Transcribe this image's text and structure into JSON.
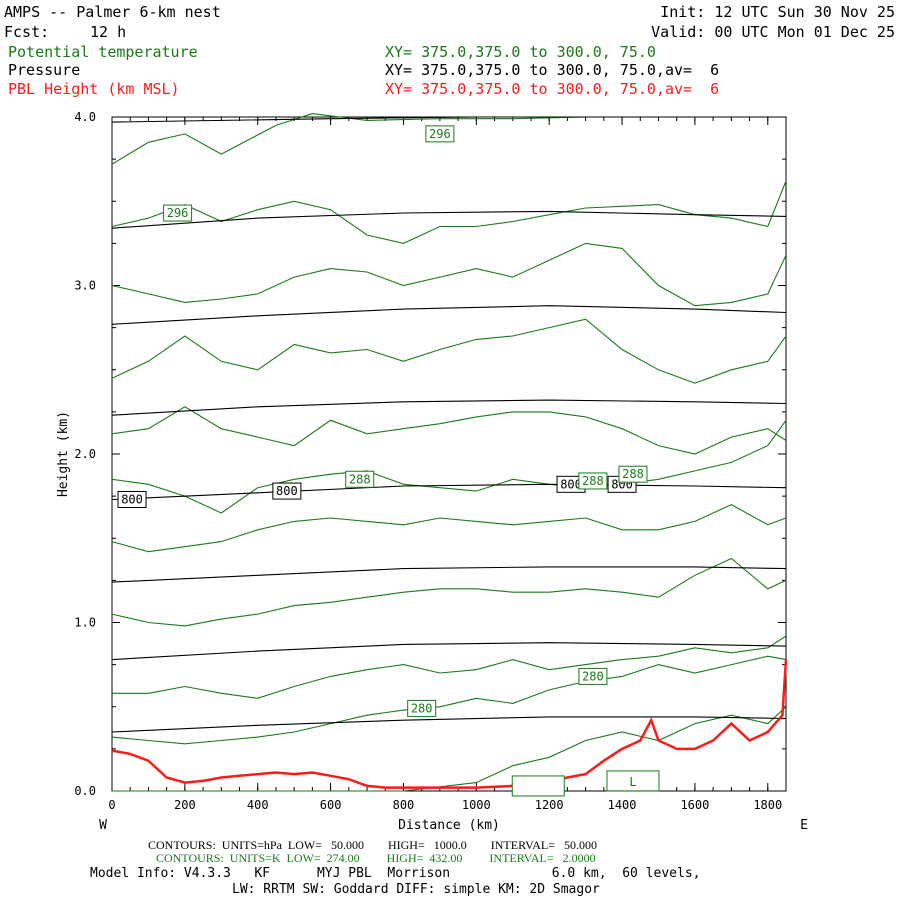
{
  "header": {
    "title": "AMPS -- Palmer 6-km nest",
    "fcst_label": "Fcst:",
    "fcst_value": "12 h",
    "init": "Init: 12 UTC Sun 30 Nov 25",
    "valid": "Valid: 00 UTC Mon 01 Dec 25"
  },
  "fields": [
    {
      "name": "Potential temperature",
      "xy": "XY= 375.0,375.0 to 300.0, 75.0",
      "color": "#1a7a1a"
    },
    {
      "name": "Pressure",
      "xy": "XY= 375.0,375.0 to 300.0, 75.0,av=  6",
      "color": "#000000"
    },
    {
      "name": "PBL Height (km MSL)",
      "xy": "XY= 375.0,375.0 to 300.0, 75.0,av=  6",
      "color": "#ff1a1a"
    }
  ],
  "chart_data": {
    "type": "line",
    "xlabel": "Distance (km)",
    "ylabel": "Height (km)",
    "xlim": [
      0,
      1850
    ],
    "ylim": [
      0,
      4.0
    ],
    "x_ticks": [
      0,
      200,
      400,
      600,
      800,
      1000,
      1200,
      1400,
      1600,
      1800
    ],
    "y_ticks": [
      0.0,
      1.0,
      2.0,
      3.0,
      4.0
    ],
    "y_tick_labels": [
      "0.0",
      "1.0",
      "2.0",
      "3.0",
      "4.0"
    ],
    "left_end_label": "W",
    "right_end_label": "E",
    "pressure_contours": [
      {
        "x": [
          0,
          600,
          1000,
          1400,
          1850
        ],
        "y": [
          3.97,
          3.99,
          4.0,
          4.0,
          4.0
        ]
      },
      {
        "x": [
          0,
          400,
          800,
          1200,
          1600,
          1850
        ],
        "y": [
          3.34,
          3.4,
          3.43,
          3.44,
          3.42,
          3.41
        ]
      },
      {
        "x": [
          0,
          400,
          800,
          1200,
          1600,
          1850
        ],
        "y": [
          2.77,
          2.82,
          2.86,
          2.88,
          2.86,
          2.84
        ]
      },
      {
        "x": [
          0,
          400,
          800,
          1200,
          1600,
          1850
        ],
        "y": [
          2.23,
          2.28,
          2.31,
          2.32,
          2.31,
          2.3
        ]
      },
      {
        "x": [
          0,
          400,
          800,
          1200,
          1600,
          1850
        ],
        "y": [
          1.73,
          1.77,
          1.81,
          1.82,
          1.81,
          1.8
        ]
      },
      {
        "x": [
          0,
          400,
          800,
          1200,
          1600,
          1850
        ],
        "y": [
          1.24,
          1.28,
          1.32,
          1.33,
          1.33,
          1.32
        ]
      },
      {
        "x": [
          0,
          400,
          800,
          1200,
          1600,
          1850
        ],
        "y": [
          0.78,
          0.83,
          0.87,
          0.88,
          0.87,
          0.86
        ]
      },
      {
        "x": [
          0,
          400,
          800,
          1200,
          1600,
          1850
        ],
        "y": [
          0.35,
          0.39,
          0.42,
          0.44,
          0.44,
          0.43
        ]
      }
    ],
    "pressure_labels": [
      {
        "text": "800",
        "x": 55,
        "y": 1.73
      },
      {
        "text": "800",
        "x": 480,
        "y": 1.78
      },
      {
        "text": "800",
        "x": 1260,
        "y": 1.82
      },
      {
        "text": "800",
        "x": 1400,
        "y": 1.82
      }
    ],
    "theta_contours": [
      {
        "x": [
          0,
          100,
          200,
          300,
          450,
          550,
          700,
          900,
          1100,
          1300,
          1500,
          1700,
          1850
        ],
        "y": [
          3.72,
          3.85,
          3.9,
          3.78,
          3.95,
          4.02,
          3.98,
          3.99,
          3.99,
          4.0,
          4.0,
          4.0,
          4.0
        ]
      },
      {
        "x": [
          0,
          100,
          200,
          300,
          400,
          500,
          600,
          700,
          800,
          900,
          1000,
          1100,
          1200,
          1300,
          1400,
          1500,
          1600,
          1700,
          1800,
          1850
        ],
        "y": [
          3.35,
          3.4,
          3.48,
          3.38,
          3.45,
          3.5,
          3.45,
          3.3,
          3.25,
          3.35,
          3.35,
          3.38,
          3.42,
          3.46,
          3.47,
          3.48,
          3.42,
          3.4,
          3.35,
          3.62
        ]
      },
      {
        "x": [
          0,
          100,
          200,
          300,
          400,
          500,
          600,
          700,
          800,
          900,
          1000,
          1100,
          1200,
          1300,
          1400,
          1500,
          1600,
          1700,
          1800,
          1850
        ],
        "y": [
          3.0,
          2.95,
          2.9,
          2.92,
          2.95,
          3.05,
          3.1,
          3.08,
          3.0,
          3.05,
          3.1,
          3.05,
          3.15,
          3.25,
          3.22,
          3.0,
          2.88,
          2.9,
          2.95,
          3.18
        ]
      },
      {
        "x": [
          0,
          100,
          200,
          300,
          400,
          500,
          600,
          700,
          800,
          900,
          1000,
          1100,
          1200,
          1300,
          1400,
          1500,
          1600,
          1700,
          1800,
          1850
        ],
        "y": [
          2.45,
          2.55,
          2.7,
          2.55,
          2.5,
          2.65,
          2.6,
          2.62,
          2.55,
          2.62,
          2.68,
          2.7,
          2.75,
          2.8,
          2.62,
          2.5,
          2.42,
          2.5,
          2.55,
          2.7
        ]
      },
      {
        "x": [
          0,
          100,
          200,
          300,
          400,
          500,
          600,
          700,
          800,
          900,
          1000,
          1100,
          1200,
          1300,
          1400,
          1500,
          1600,
          1700,
          1800,
          1850
        ],
        "y": [
          2.12,
          2.15,
          2.28,
          2.15,
          2.1,
          2.05,
          2.2,
          2.12,
          2.15,
          2.18,
          2.22,
          2.25,
          2.25,
          2.22,
          2.15,
          2.05,
          2.0,
          2.1,
          2.15,
          2.08
        ]
      },
      {
        "x": [
          0,
          100,
          200,
          300,
          400,
          500,
          600,
          700,
          800,
          900,
          1000,
          1100,
          1200,
          1300,
          1400,
          1500,
          1600,
          1700,
          1800,
          1850
        ],
        "y": [
          1.85,
          1.82,
          1.75,
          1.65,
          1.8,
          1.85,
          1.88,
          1.9,
          1.82,
          1.8,
          1.78,
          1.85,
          1.82,
          1.8,
          1.82,
          1.85,
          1.9,
          1.95,
          2.05,
          2.2
        ]
      },
      {
        "x": [
          0,
          100,
          200,
          300,
          400,
          500,
          600,
          700,
          800,
          900,
          1000,
          1100,
          1200,
          1300,
          1400,
          1500,
          1600,
          1700,
          1800,
          1850
        ],
        "y": [
          1.48,
          1.42,
          1.45,
          1.48,
          1.55,
          1.6,
          1.62,
          1.6,
          1.58,
          1.62,
          1.6,
          1.58,
          1.6,
          1.62,
          1.55,
          1.55,
          1.6,
          1.7,
          1.58,
          1.62
        ]
      },
      {
        "x": [
          0,
          100,
          200,
          300,
          400,
          500,
          600,
          700,
          800,
          900,
          1000,
          1100,
          1200,
          1300,
          1400,
          1500,
          1600,
          1700,
          1800,
          1850
        ],
        "y": [
          1.05,
          1.0,
          0.98,
          1.02,
          1.05,
          1.1,
          1.12,
          1.15,
          1.18,
          1.2,
          1.2,
          1.18,
          1.18,
          1.2,
          1.18,
          1.15,
          1.28,
          1.38,
          1.2,
          1.25
        ]
      },
      {
        "x": [
          0,
          100,
          200,
          300,
          400,
          500,
          600,
          700,
          800,
          900,
          1000,
          1100,
          1200,
          1300,
          1400,
          1500,
          1600,
          1700,
          1800,
          1850
        ],
        "y": [
          0.58,
          0.58,
          0.62,
          0.58,
          0.55,
          0.62,
          0.68,
          0.72,
          0.75,
          0.7,
          0.72,
          0.78,
          0.72,
          0.75,
          0.78,
          0.8,
          0.85,
          0.82,
          0.85,
          0.92
        ]
      },
      {
        "x": [
          0,
          100,
          200,
          300,
          400,
          500,
          600,
          700,
          800,
          900,
          1000,
          1100,
          1200,
          1300,
          1400,
          1500,
          1600,
          1700,
          1800,
          1850
        ],
        "y": [
          0.32,
          0.3,
          0.28,
          0.3,
          0.32,
          0.35,
          0.4,
          0.45,
          0.48,
          0.5,
          0.55,
          0.52,
          0.6,
          0.65,
          0.68,
          0.75,
          0.7,
          0.75,
          0.8,
          0.78
        ]
      },
      {
        "x": [
          0,
          100,
          200,
          600,
          800,
          1000,
          1100,
          1200,
          1300,
          1400,
          1500,
          1600,
          1700,
          1800,
          1850
        ],
        "y": [
          0.0,
          0.0,
          0.0,
          0.0,
          0.0,
          0.05,
          0.15,
          0.2,
          0.3,
          0.35,
          0.3,
          0.4,
          0.45,
          0.4,
          0.5
        ]
      }
    ],
    "theta_labels": [
      {
        "text": "296",
        "x": 900,
        "y": 3.9
      },
      {
        "text": "296",
        "x": 180,
        "y": 3.43
      },
      {
        "text": "288",
        "x": 680,
        "y": 1.85
      },
      {
        "text": "288",
        "x": 1320,
        "y": 1.84
      },
      {
        "text": "288",
        "x": 1430,
        "y": 1.88
      },
      {
        "text": "280",
        "x": 1320,
        "y": 0.68
      },
      {
        "text": "280",
        "x": 850,
        "y": 0.49
      }
    ],
    "pbl_height": {
      "x": [
        0,
        50,
        100,
        150,
        200,
        250,
        300,
        350,
        400,
        450,
        500,
        550,
        600,
        650,
        700,
        750,
        800,
        900,
        1000,
        1100,
        1150,
        1200,
        1250,
        1300,
        1350,
        1400,
        1450,
        1480,
        1500,
        1550,
        1600,
        1650,
        1700,
        1750,
        1800,
        1840,
        1850
      ],
      "y": [
        0.24,
        0.22,
        0.18,
        0.08,
        0.05,
        0.06,
        0.08,
        0.09,
        0.1,
        0.11,
        0.1,
        0.11,
        0.09,
        0.07,
        0.03,
        0.02,
        0.02,
        0.02,
        0.02,
        0.03,
        0.04,
        0.05,
        0.08,
        0.1,
        0.18,
        0.25,
        0.3,
        0.42,
        0.3,
        0.25,
        0.25,
        0.3,
        0.4,
        0.3,
        0.35,
        0.45,
        0.78
      ]
    },
    "low_markers": [
      {
        "text": "L",
        "x": 1430,
        "y": 0.06
      },
      {
        "text": "",
        "x": 1170,
        "y": 0.03
      }
    ]
  },
  "footer": {
    "line1": "CONTOURS:  UNITS=hPa  LOW=   50.000        HIGH=   1000.0        INTERVAL=   50.000",
    "line2": "CONTOURS:  UNITS=K  LOW=  274.00         HIGH=  432.00         INTERVAL=   2.0000",
    "line3": "Model Info: V4.3.3   KF      MYJ PBL  Morrison             6.0 km,  60 levels,",
    "line4": "LW: RRTM SW: Goddard DIFF: simple KM: 2D Smagor"
  }
}
